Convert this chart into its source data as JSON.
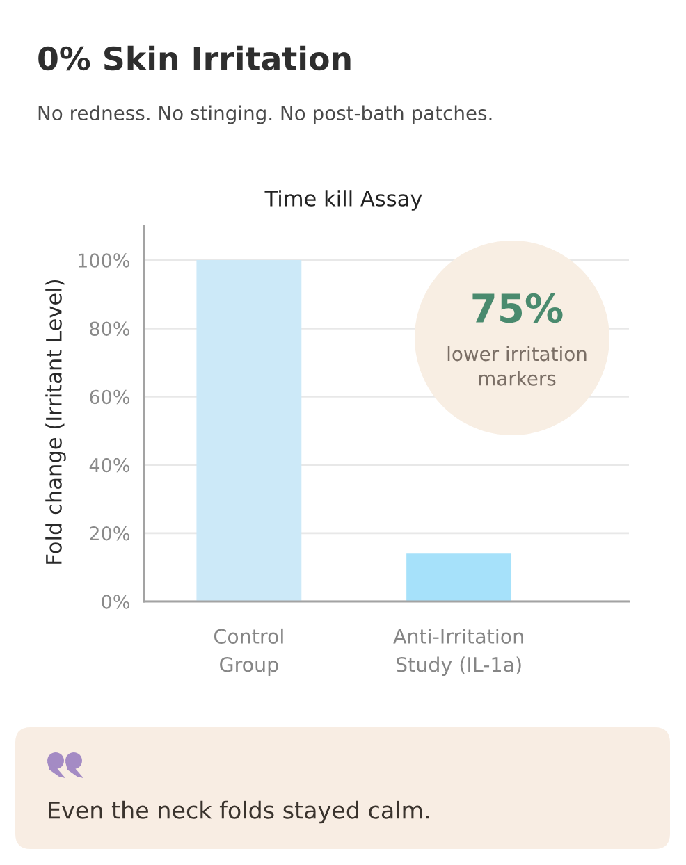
{
  "chart_data": {
    "type": "bar",
    "title": "0% Skin Irritation",
    "subtitle": "No redness. No stinging. No post-bath patches.",
    "ylabel": "Fold change (Irritant Level)",
    "categories": [
      "Control\nGroup",
      "Anti-Irritation\nStudy (IL-1a)"
    ],
    "values": [
      100,
      14
    ],
    "colors": [
      "#cce9f8",
      "#a6e1fa"
    ],
    "ylim": [
      0,
      110
    ],
    "yticks": [
      {
        "value": 0,
        "label": "0%"
      },
      {
        "value": 20,
        "label": "20%"
      },
      {
        "value": 40,
        "label": "40%"
      },
      {
        "value": 60,
        "label": "60%"
      },
      {
        "value": 80,
        "label": "80%"
      },
      {
        "value": 100,
        "label": "100%"
      }
    ],
    "grid": "y",
    "annotations": [
      "Time kill Assay",
      "75%",
      "lower irritation\nmarkers",
      "Even the neck folds stayed calm."
    ]
  }
}
